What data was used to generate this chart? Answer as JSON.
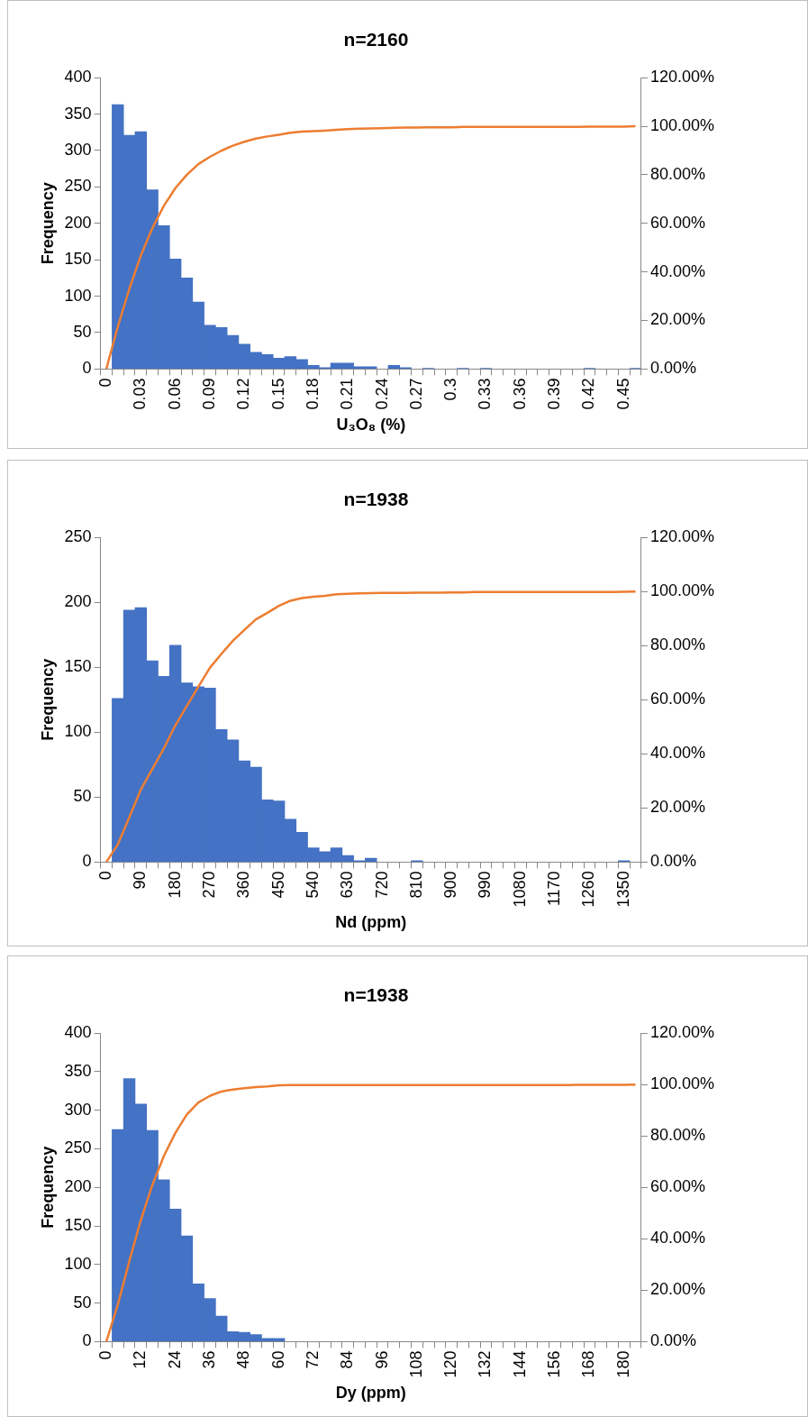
{
  "chart_data": [
    {
      "type": "bar",
      "title": "n=2160",
      "xlabel": "U₃O₈ (%)",
      "ylabel": "Frequency",
      "grid": false,
      "legend": false,
      "marker": "none",
      "line_style": "solid",
      "categories": [
        "0",
        null,
        null,
        "0.03",
        null,
        null,
        "0.06",
        null,
        null,
        "0.09",
        null,
        null,
        "0.12",
        null,
        null,
        "0.15",
        null,
        null,
        "0.18",
        null,
        null,
        "0.21",
        null,
        null,
        "0.24",
        null,
        null,
        "0.27",
        null,
        null,
        "0.3",
        null,
        null,
        "0.33",
        null,
        null,
        "0.36",
        null,
        null,
        "0.39",
        null,
        null,
        "0.42",
        null,
        null,
        "0.45",
        null
      ],
      "ylim": [
        0,
        400
      ],
      "yticks": [
        0,
        50,
        100,
        150,
        200,
        250,
        300,
        350,
        400
      ],
      "y2lim": [
        0,
        120
      ],
      "y2ticks": [
        {
          "value": 0,
          "label": "0.00%"
        },
        {
          "value": 20,
          "label": "20.00%"
        },
        {
          "value": 40,
          "label": "40.00%"
        },
        {
          "value": 60,
          "label": "60.00%"
        },
        {
          "value": 80,
          "label": "80.00%"
        },
        {
          "value": 100,
          "label": "100.00%"
        },
        {
          "value": 120,
          "label": "120.00%"
        }
      ],
      "series": [
        {
          "color": "#4472c4",
          "values": [
            0,
            363,
            321,
            326,
            246,
            197,
            151,
            125,
            92,
            60,
            57,
            46,
            34,
            23,
            20,
            15,
            17,
            13,
            5,
            2,
            8,
            8,
            3,
            3,
            0,
            5,
            2,
            0,
            1,
            0,
            0,
            1,
            0,
            1,
            0,
            0,
            0,
            0,
            0,
            0,
            0,
            0,
            1,
            0,
            0,
            0,
            1
          ]
        },
        {
          "type": "line",
          "axis": "y2",
          "color": "#ed7d31",
          "values": [
            0,
            17.4,
            33,
            46.7,
            58,
            67.2,
            74.5,
            80,
            84.4,
            87.4,
            89.9,
            92,
            93.6,
            94.9,
            95.8,
            96.5,
            97.3,
            97.8,
            98,
            98.2,
            98.5,
            98.8,
            99,
            99.1,
            99.2,
            99.4,
            99.5,
            99.5,
            99.6,
            99.6,
            99.6,
            99.7,
            99.7,
            99.7,
            99.7,
            99.7,
            99.7,
            99.7,
            99.7,
            99.7,
            99.7,
            99.7,
            99.8,
            99.8,
            99.8,
            99.8,
            100
          ]
        }
      ]
    },
    {
      "type": "bar",
      "title": "n=1938",
      "xlabel": "Nd (ppm)",
      "ylabel": "Frequency",
      "grid": false,
      "legend": false,
      "marker": "none",
      "line_style": "solid",
      "categories": [
        "0",
        null,
        null,
        "90",
        null,
        null,
        "180",
        null,
        null,
        "270",
        null,
        null,
        "360",
        null,
        null,
        "450",
        null,
        null,
        "540",
        null,
        null,
        "630",
        null,
        null,
        "720",
        null,
        null,
        "810",
        null,
        null,
        "900",
        null,
        null,
        "990",
        null,
        null,
        "1080",
        null,
        null,
        "1170",
        null,
        null,
        "1260",
        null,
        null,
        "1350",
        null
      ],
      "ylim": [
        0,
        250
      ],
      "yticks": [
        0,
        50,
        100,
        150,
        200,
        250
      ],
      "y2lim": [
        0,
        120
      ],
      "y2ticks": [
        {
          "value": 0,
          "label": "0.00%"
        },
        {
          "value": 20,
          "label": "20.00%"
        },
        {
          "value": 40,
          "label": "40.00%"
        },
        {
          "value": 60,
          "label": "60.00%"
        },
        {
          "value": 80,
          "label": "80.00%"
        },
        {
          "value": 100,
          "label": "100.00%"
        },
        {
          "value": 120,
          "label": "120.00%"
        }
      ],
      "series": [
        {
          "color": "#4472c4",
          "values": [
            0,
            126,
            194,
            196,
            155,
            143,
            167,
            138,
            135,
            134,
            102,
            94,
            78,
            73,
            48,
            47,
            33,
            23,
            11,
            8,
            11,
            5,
            1,
            3,
            0,
            0,
            0,
            1,
            0,
            0,
            0,
            0,
            0,
            0,
            0,
            0,
            0,
            0,
            0,
            0,
            0,
            0,
            0,
            0,
            0,
            1,
            0
          ]
        },
        {
          "type": "line",
          "axis": "y2",
          "color": "#ed7d31",
          "values": [
            0,
            6.5,
            16.5,
            26.8,
            34.4,
            42,
            50.5,
            57.7,
            64.8,
            71.8,
            76.9,
            81.8,
            85.8,
            89.7,
            92.1,
            94.7,
            96.6,
            97.6,
            98.1,
            98.4,
            99,
            99.2,
            99.3,
            99.4,
            99.5,
            99.5,
            99.5,
            99.6,
            99.6,
            99.6,
            99.7,
            99.7,
            99.8,
            99.8,
            99.8,
            99.8,
            99.8,
            99.8,
            99.8,
            99.8,
            99.8,
            99.8,
            99.8,
            99.8,
            99.8,
            99.9,
            100
          ]
        }
      ]
    },
    {
      "type": "bar",
      "title": "n=1938",
      "xlabel": "Dy (ppm)",
      "ylabel": "Frequency",
      "grid": false,
      "legend": false,
      "marker": "none",
      "line_style": "solid",
      "categories": [
        "0",
        null,
        null,
        "12",
        null,
        null,
        "24",
        null,
        null,
        "36",
        null,
        null,
        "48",
        null,
        null,
        "60",
        null,
        null,
        "72",
        null,
        null,
        "84",
        null,
        null,
        "96",
        null,
        null,
        "108",
        null,
        null,
        "120",
        null,
        null,
        "132",
        null,
        null,
        "144",
        null,
        null,
        "156",
        null,
        null,
        "168",
        null,
        null,
        "180",
        null
      ],
      "ylim": [
        0,
        400
      ],
      "yticks": [
        0,
        50,
        100,
        150,
        200,
        250,
        300,
        350,
        400
      ],
      "y2lim": [
        0,
        120
      ],
      "y2ticks": [
        {
          "value": 0,
          "label": "0.00%"
        },
        {
          "value": 20,
          "label": "20.00%"
        },
        {
          "value": 40,
          "label": "40.00%"
        },
        {
          "value": 60,
          "label": "60.00%"
        },
        {
          "value": 80,
          "label": "80.00%"
        },
        {
          "value": 100,
          "label": "100.00%"
        },
        {
          "value": 120,
          "label": "120.00%"
        }
      ],
      "series": [
        {
          "color": "#4472c4",
          "values": [
            0,
            275,
            341,
            308,
            274,
            210,
            172,
            137,
            75,
            56,
            33,
            13,
            12,
            9,
            4,
            4,
            0,
            0,
            0,
            0,
            0,
            0,
            0,
            0,
            0,
            0,
            0,
            0,
            0,
            0,
            0,
            0,
            0,
            0,
            0,
            0,
            0,
            0,
            0,
            0,
            0,
            0,
            0,
            0,
            0,
            0,
            0
          ]
        },
        {
          "type": "line",
          "axis": "y2",
          "color": "#ed7d31",
          "values": [
            0,
            14.4,
            31.3,
            47.3,
            60.9,
            72.2,
            81.2,
            88.4,
            93,
            95.6,
            97.3,
            98.1,
            98.6,
            99,
            99.3,
            99.7,
            99.8,
            99.8,
            99.8,
            99.8,
            99.8,
            99.8,
            99.8,
            99.8,
            99.8,
            99.8,
            99.8,
            99.8,
            99.8,
            99.8,
            99.8,
            99.8,
            99.8,
            99.8,
            99.8,
            99.8,
            99.8,
            99.8,
            99.8,
            99.8,
            99.8,
            99.9,
            99.9,
            99.9,
            99.9,
            99.9,
            100
          ]
        }
      ]
    }
  ]
}
